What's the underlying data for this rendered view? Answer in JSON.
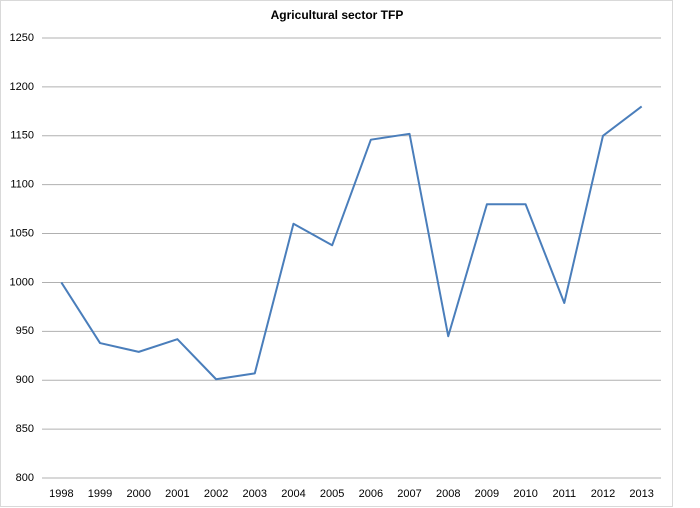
{
  "chart_data": {
    "type": "line",
    "title": "Agricultural sector TFP",
    "categories": [
      "1998",
      "1999",
      "2000",
      "2001",
      "2002",
      "2003",
      "2004",
      "2005",
      "2006",
      "2007",
      "2008",
      "2009",
      "2010",
      "2011",
      "2012",
      "2013"
    ],
    "series": [
      {
        "name": "TFP",
        "color": "#4a7ebb",
        "values": [
          1000,
          938,
          929,
          942,
          901,
          907,
          1060,
          1038,
          1146,
          1152,
          945,
          1080,
          1080,
          979,
          1150,
          1180
        ]
      }
    ],
    "ylim": [
      800,
      1250
    ],
    "yticks": [
      800,
      850,
      900,
      950,
      1000,
      1050,
      1100,
      1150,
      1200,
      1250
    ],
    "grid": true
  }
}
